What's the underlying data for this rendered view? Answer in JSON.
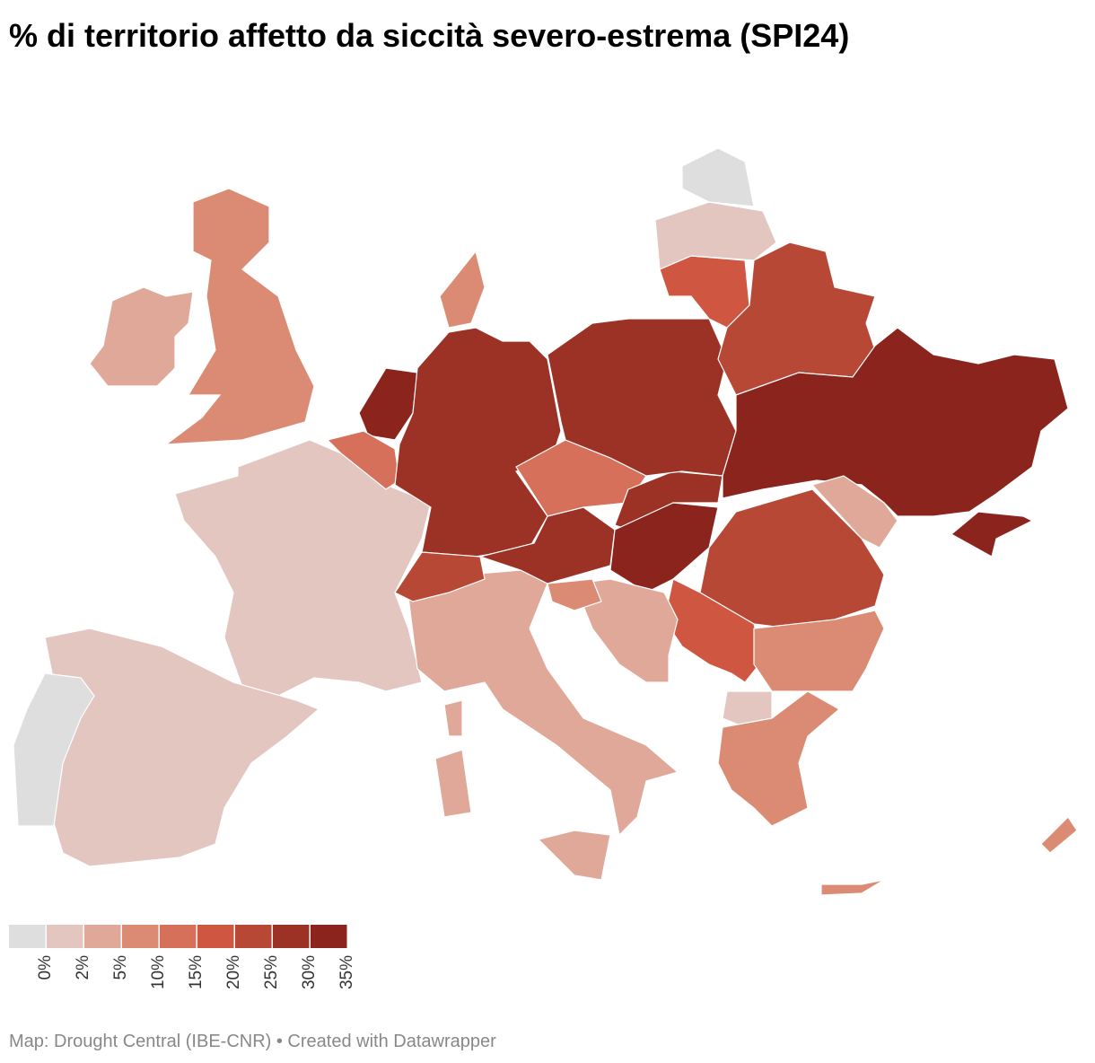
{
  "title": "% di territorio affetto da siccità severo-estrema  (SPI24)",
  "legend": {
    "colors": [
      "#dedede",
      "#e3c6bf",
      "#e0a898",
      "#db8b73",
      "#d6705a",
      "#cf5641",
      "#b84836",
      "#9c3225",
      "#8a241d"
    ],
    "ticks": [
      {
        "value": 0,
        "label": "0%"
      },
      {
        "value": 2,
        "label": "2%"
      },
      {
        "value": 5,
        "label": "5%"
      },
      {
        "value": 10,
        "label": "10%"
      },
      {
        "value": 15,
        "label": "15%"
      },
      {
        "value": 20,
        "label": "20%"
      },
      {
        "value": 25,
        "label": "25%"
      },
      {
        "value": 30,
        "label": "30%"
      },
      {
        "value": 35,
        "label": "35%"
      }
    ]
  },
  "footer": "Map: Drought Central (IBE-CNR) • Created with Datawrapper"
}
